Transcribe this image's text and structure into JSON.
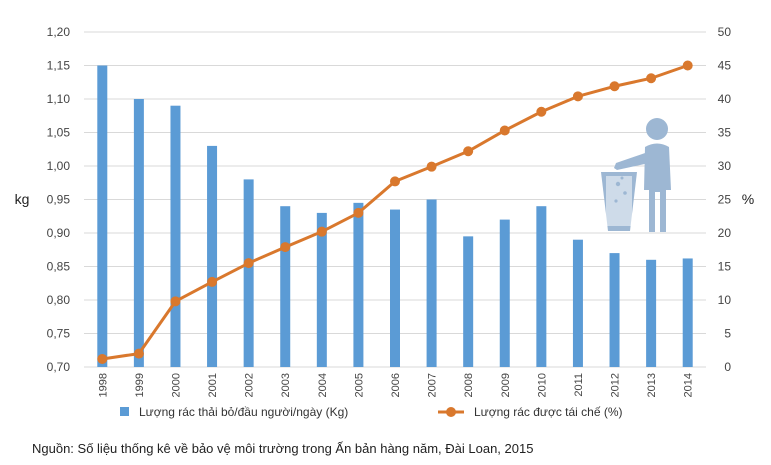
{
  "chart_data": {
    "type": "bar+line",
    "categories": [
      "1998",
      "1999",
      "2000",
      "2001",
      "2002",
      "2003",
      "2004",
      "2005",
      "2006",
      "2007",
      "2008",
      "2009",
      "2010",
      "2011",
      "2012",
      "2013",
      "2014"
    ],
    "series": [
      {
        "name": "Lượng rác thải bỏ/đầu người/ngày (Kg)",
        "type": "bar",
        "axis": "left",
        "color": "#5B9BD5",
        "values": [
          1.15,
          1.1,
          1.09,
          1.03,
          0.98,
          0.94,
          0.93,
          0.945,
          0.935,
          0.95,
          0.895,
          0.92,
          0.94,
          0.89,
          0.87,
          0.86,
          0.862
        ]
      },
      {
        "name": "Lượng rác được tái chế (%)",
        "type": "line",
        "axis": "right",
        "color": "#D9782D",
        "values": [
          1.2,
          2.0,
          9.8,
          12.7,
          15.5,
          17.9,
          20.2,
          23.0,
          27.7,
          29.9,
          32.2,
          35.3,
          38.1,
          40.4,
          41.9,
          43.1,
          45.0
        ]
      }
    ],
    "ylabel_left": "kg",
    "ylabel_right": "%",
    "ylim_left": [
      0.7,
      1.2
    ],
    "ylim_right": [
      0,
      50
    ],
    "yticks_left": [
      "0,70",
      "0,75",
      "0,80",
      "0,85",
      "0,90",
      "0,95",
      "1,00",
      "1,05",
      "1,10",
      "1,15",
      "1,20"
    ],
    "yticks_right": [
      "0",
      "5",
      "10",
      "15",
      "20",
      "25",
      "30",
      "35",
      "40",
      "45",
      "50"
    ],
    "grid": true,
    "legend_position": "bottom",
    "icon": "person-throwing-trash-icon",
    "source": "Nguồn: Số liệu thống kê về bảo vệ môi trường trong Ấn bản hàng năm, Đài Loan, 2015"
  }
}
